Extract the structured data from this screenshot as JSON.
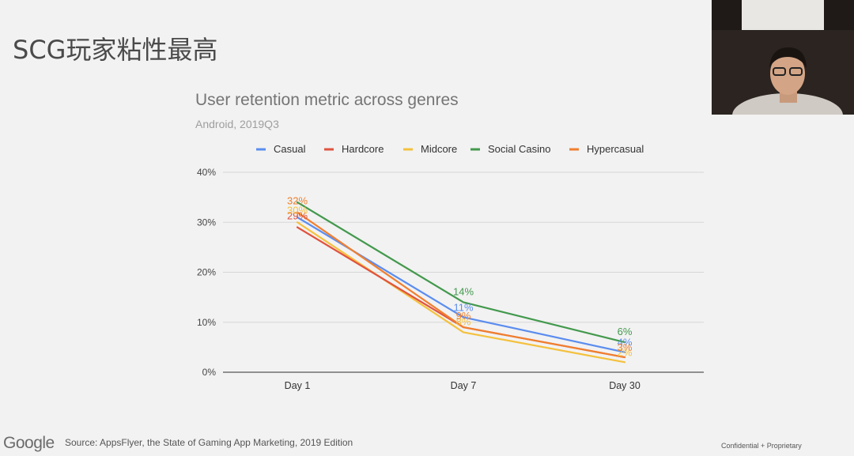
{
  "slide": {
    "title": "SCG玩家粘性最高",
    "brand": "Google",
    "source": "Source: AppsFlyer, the State of Gaming App Marketing, 2019 Edition",
    "confidential": "Confidential + Proprietary"
  },
  "chart_data": {
    "type": "line",
    "title": "User retention metric across genres",
    "subtitle": "Android, 2019Q3",
    "xlabel": "",
    "ylabel": "",
    "categories": [
      "Day 1",
      "Day 7",
      "Day 30"
    ],
    "ylim": [
      0,
      40
    ],
    "yticks": [
      "0%",
      "10%",
      "20%",
      "30%",
      "40%"
    ],
    "grid": true,
    "legend_position": "top",
    "series": [
      {
        "name": "Casual",
        "color": "#5b8def",
        "values": [
          31,
          11,
          4
        ],
        "labels": [
          "",
          "11%",
          "4%"
        ]
      },
      {
        "name": "Hardcore",
        "color": "#e0533f",
        "values": [
          29,
          9,
          3
        ],
        "labels": [
          "29%",
          "",
          ""
        ]
      },
      {
        "name": "Midcore",
        "color": "#f4c13d",
        "values": [
          30,
          8,
          2
        ],
        "labels": [
          "30%",
          "8%",
          "2%"
        ]
      },
      {
        "name": "Social Casino",
        "color": "#43994d",
        "values": [
          34,
          14,
          6
        ],
        "labels": [
          "",
          "14%",
          "6%"
        ]
      },
      {
        "name": "Hypercasual",
        "color": "#f07f2e",
        "values": [
          32,
          9,
          3
        ],
        "labels": [
          "32%",
          "9%",
          "3%"
        ]
      }
    ]
  }
}
